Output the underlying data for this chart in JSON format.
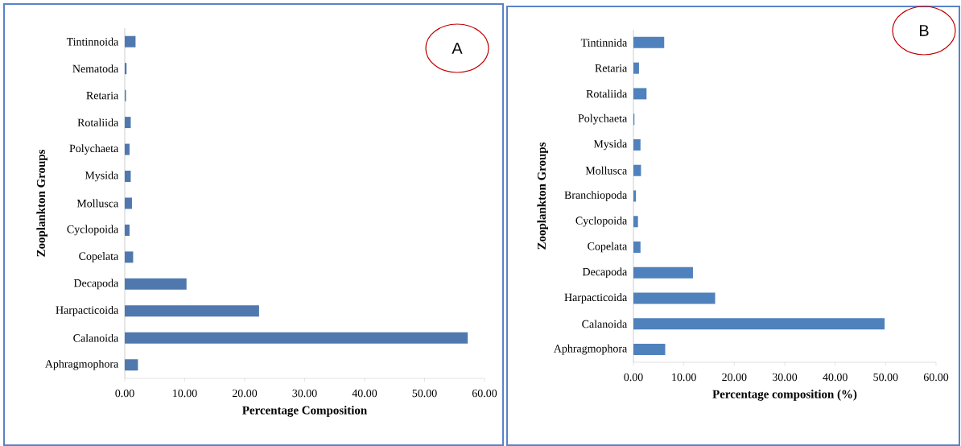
{
  "chart_data": [
    {
      "type": "bar",
      "orientation": "horizontal",
      "xlabel": "Percentage Composition",
      "ylabel": "Zooplankton  Groups",
      "categories": [
        "Tintinnoida",
        "Nematoda",
        "Retaria",
        "Rotaliida",
        "Polychaeta",
        "Mysida",
        "Mollusca",
        "Cyclopoida",
        "Copelata",
        "Decapoda",
        "Harpacticoida",
        "Calanoida",
        "Aphragmophora"
      ],
      "values": [
        1.8,
        0.3,
        0.2,
        1.0,
        0.8,
        1.0,
        1.2,
        0.8,
        1.4,
        10.3,
        22.4,
        57.2,
        2.2
      ],
      "color": "#4f79ae",
      "xlim": [
        0,
        60
      ],
      "xticks": [
        {
          "value": 0,
          "label": "0.00"
        },
        {
          "value": 10,
          "label": "10.00"
        },
        {
          "value": 20,
          "label": "20.00"
        },
        {
          "value": 30,
          "label": "30.00"
        },
        {
          "value": 40,
          "label": "40.00"
        },
        {
          "value": 50,
          "label": "50.00"
        },
        {
          "value": 60,
          "label": "60.00"
        }
      ],
      "annotations": [
        "A"
      ]
    },
    {
      "type": "bar",
      "orientation": "horizontal",
      "xlabel": "Percentage composition (%)",
      "ylabel": "Zooplankton  Groups",
      "categories": [
        "Tintinnida",
        "Retaria",
        "Rotaliida",
        "Polychaeta",
        "Mysida",
        "Mollusca",
        "Branchiopoda",
        "Cyclopoida",
        "Copelata",
        "Decapoda",
        "Harpacticoida",
        "Calanoida",
        "Aphragmophora"
      ],
      "values": [
        6.1,
        1.1,
        2.6,
        0.2,
        1.4,
        1.5,
        0.5,
        0.9,
        1.4,
        11.8,
        16.2,
        49.8,
        6.3
      ],
      "color": "#4f81bd",
      "xlim": [
        0,
        60
      ],
      "xticks": [
        {
          "value": 0,
          "label": "0.00"
        },
        {
          "value": 10,
          "label": "10.00"
        },
        {
          "value": 20,
          "label": "20.00"
        },
        {
          "value": 30,
          "label": "30.00"
        },
        {
          "value": 40,
          "label": "40.00"
        },
        {
          "value": 50,
          "label": "50.00"
        },
        {
          "value": 60,
          "label": "60.00"
        }
      ],
      "annotations": [
        "B"
      ]
    }
  ]
}
